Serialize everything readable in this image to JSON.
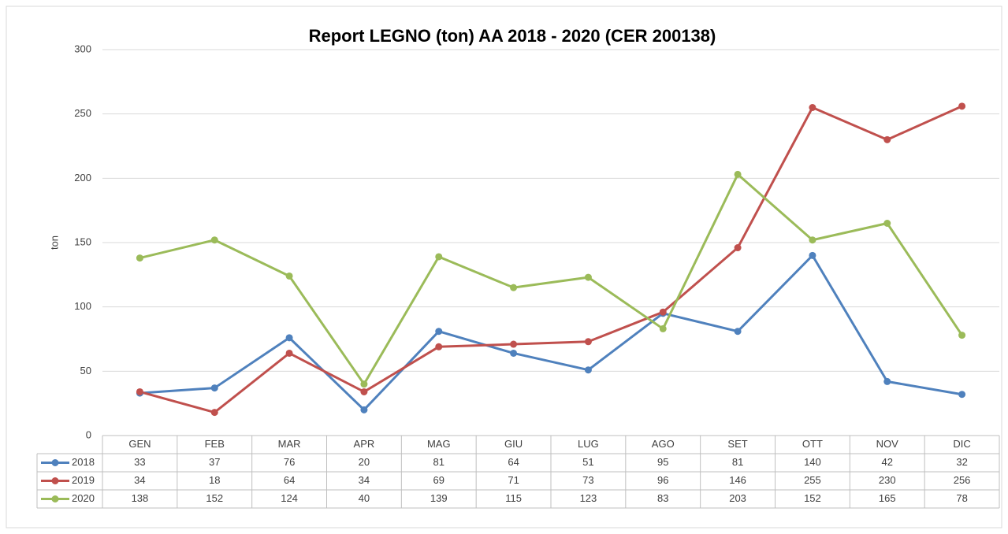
{
  "chart_data": {
    "type": "line",
    "title": "Report LEGNO (ton) AA 2018 - 2020 (CER 200138)",
    "y_label": "ton",
    "categories": [
      "GEN",
      "FEB",
      "MAR",
      "APR",
      "MAG",
      "GIU",
      "LUG",
      "AGO",
      "SET",
      "OTT",
      "NOV",
      "DIC"
    ],
    "series": [
      {
        "name": "2018",
        "color": "#4f81bd",
        "values": [
          33,
          37,
          76,
          20,
          81,
          64,
          51,
          95,
          81,
          140,
          42,
          32
        ]
      },
      {
        "name": "2019",
        "color": "#c0504d",
        "values": [
          34,
          18,
          64,
          34,
          69,
          71,
          73,
          96,
          146,
          255,
          230,
          256
        ]
      },
      {
        "name": "2020",
        "color": "#9bbb59",
        "values": [
          138,
          152,
          124,
          40,
          139,
          115,
          123,
          83,
          203,
          152,
          165,
          78
        ]
      }
    ],
    "ylim": [
      0,
      300
    ],
    "yticks": [
      0,
      50,
      100,
      150,
      200,
      250,
      300
    ],
    "grid": true,
    "data_table": true
  }
}
